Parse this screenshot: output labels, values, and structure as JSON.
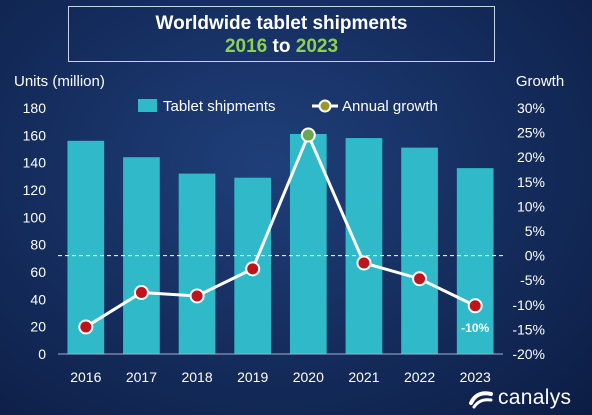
{
  "title": {
    "line1": "Worldwide tablet shipments",
    "year_start": "2016",
    "connector": "to",
    "year_end": "2023"
  },
  "brand": {
    "name": "canalys"
  },
  "chart_data": {
    "type": "bar",
    "title": "Worldwide tablet shipments 2016 to 2023",
    "categories": [
      "2016",
      "2017",
      "2018",
      "2019",
      "2020",
      "2021",
      "2022",
      "2023"
    ],
    "ylabel": "Units (million)",
    "y2label": "Growth",
    "ylim": [
      0,
      180
    ],
    "y2lim": [
      -20,
      30
    ],
    "yticks": [
      "0",
      "20",
      "40",
      "60",
      "80",
      "100",
      "120",
      "140",
      "160",
      "180"
    ],
    "y2ticks": [
      "-20%",
      "-15%",
      "-10%",
      "-5%",
      "0%",
      "5%",
      "10%",
      "15%",
      "20%",
      "25%",
      "30%"
    ],
    "legend_position": "top",
    "series": [
      {
        "name": "Tablet shipments",
        "kind": "bar",
        "axis": "left",
        "color": "#2fb9c9",
        "values": [
          156,
          144,
          132,
          129,
          161,
          158,
          151,
          136
        ]
      },
      {
        "name": "Annual growth",
        "kind": "line",
        "axis": "right",
        "line_color": "#ffffff",
        "marker_color": "#c0141c",
        "values": [
          -14.5,
          -7.5,
          -8.2,
          -2.7,
          24.5,
          -1.5,
          -4.7,
          -10.2
        ]
      }
    ],
    "highlight_point": {
      "index": 4,
      "marker_color": "#6aa84f"
    },
    "zero_growth_line": {
      "style": "dashed",
      "color": "#ffffff"
    },
    "annotations": [
      {
        "category": "2023",
        "text": "-10%"
      }
    ]
  }
}
